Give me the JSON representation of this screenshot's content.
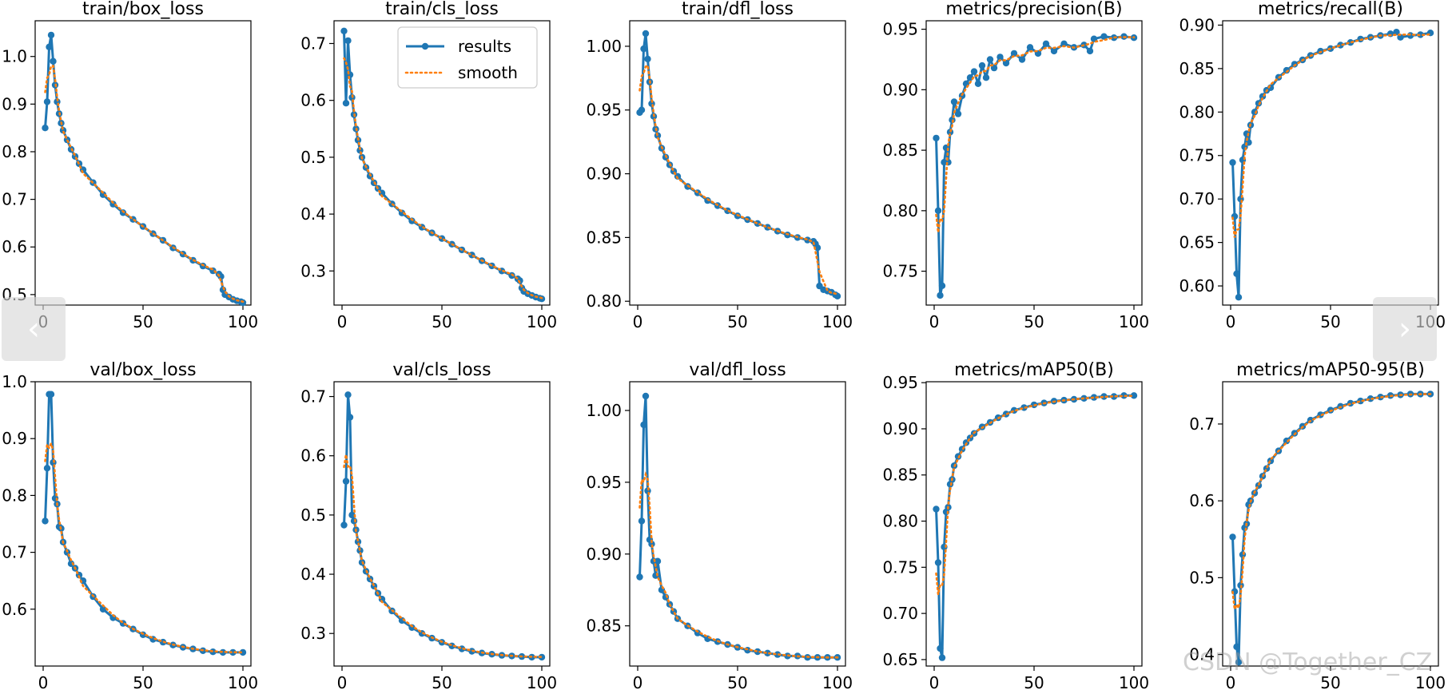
{
  "figure": {
    "legend": {
      "results_label": "results",
      "smooth_label": "smooth",
      "placement": "top-right of panel 2"
    },
    "colors": {
      "results": "#1f77b4",
      "smooth": "#ff7f0e",
      "axes": "#000000"
    }
  },
  "nav": {
    "prev_icon": "chevron-left-icon",
    "next_icon": "chevron-right-icon",
    "prev_glyph": "‹",
    "next_glyph": "›"
  },
  "watermark": {
    "text": "CSDN @Together_CZ"
  },
  "chart_data": [
    {
      "type": "line",
      "title": "train/box_loss",
      "xlim": [
        -4,
        104
      ],
      "ylim": [
        0.478,
        1.075
      ],
      "xticks": [
        0,
        50,
        100
      ],
      "yticks": [
        0.5,
        0.6,
        0.7,
        0.8,
        0.9,
        1.0
      ],
      "yticklabels": [
        "0.5",
        "0.6",
        "0.7",
        "0.8",
        "0.9",
        "1.0"
      ],
      "x": [
        1,
        2,
        3,
        4,
        5,
        6,
        7,
        8,
        9,
        10,
        12,
        14,
        16,
        18,
        20,
        25,
        30,
        35,
        40,
        45,
        50,
        55,
        60,
        65,
        70,
        75,
        80,
        85,
        88,
        89,
        90,
        91,
        93,
        95,
        97,
        99,
        100
      ],
      "values": [
        0.85,
        0.905,
        1.02,
        1.045,
        0.99,
        0.94,
        0.905,
        0.88,
        0.86,
        0.845,
        0.825,
        0.805,
        0.79,
        0.775,
        0.762,
        0.735,
        0.71,
        0.69,
        0.672,
        0.658,
        0.643,
        0.628,
        0.614,
        0.598,
        0.585,
        0.572,
        0.56,
        0.55,
        0.543,
        0.538,
        0.51,
        0.5,
        0.495,
        0.49,
        0.487,
        0.485,
        0.483
      ]
    },
    {
      "type": "line",
      "title": "train/cls_loss",
      "xlim": [
        -4,
        104
      ],
      "ylim": [
        0.24,
        0.74
      ],
      "xticks": [
        0,
        50,
        100
      ],
      "yticks": [
        0.3,
        0.4,
        0.5,
        0.6,
        0.7
      ],
      "yticklabels": [
        "0.3",
        "0.4",
        "0.5",
        "0.6",
        "0.7"
      ],
      "x": [
        1,
        2,
        3,
        4,
        5,
        6,
        7,
        8,
        9,
        10,
        12,
        14,
        16,
        18,
        20,
        25,
        30,
        35,
        40,
        45,
        50,
        55,
        60,
        65,
        70,
        75,
        80,
        85,
        88,
        89,
        90,
        91,
        93,
        95,
        97,
        99,
        100
      ],
      "values": [
        0.722,
        0.595,
        0.705,
        0.645,
        0.605,
        0.575,
        0.55,
        0.53,
        0.512,
        0.5,
        0.482,
        0.467,
        0.455,
        0.445,
        0.437,
        0.418,
        0.402,
        0.388,
        0.377,
        0.367,
        0.357,
        0.347,
        0.337,
        0.328,
        0.318,
        0.309,
        0.3,
        0.292,
        0.286,
        0.283,
        0.27,
        0.264,
        0.26,
        0.257,
        0.254,
        0.252,
        0.251
      ]
    },
    {
      "type": "line",
      "title": "train/dfl_loss",
      "xlim": [
        -4,
        104
      ],
      "ylim": [
        0.797,
        1.02
      ],
      "xticks": [
        0,
        50,
        100
      ],
      "yticks": [
        0.8,
        0.85,
        0.9,
        0.95,
        1.0
      ],
      "yticklabels": [
        "0.80",
        "0.85",
        "0.90",
        "0.95",
        "1.00"
      ],
      "x": [
        1,
        2,
        3,
        4,
        5,
        6,
        7,
        8,
        9,
        10,
        12,
        14,
        16,
        18,
        20,
        25,
        30,
        35,
        40,
        45,
        50,
        55,
        60,
        65,
        70,
        75,
        80,
        85,
        88,
        89,
        90,
        91,
        93,
        95,
        97,
        99,
        100
      ],
      "values": [
        0.948,
        0.95,
        0.998,
        1.01,
        0.99,
        0.972,
        0.955,
        0.945,
        0.935,
        0.93,
        0.92,
        0.913,
        0.907,
        0.902,
        0.898,
        0.89,
        0.885,
        0.879,
        0.875,
        0.871,
        0.867,
        0.864,
        0.861,
        0.858,
        0.855,
        0.852,
        0.85,
        0.848,
        0.847,
        0.845,
        0.842,
        0.812,
        0.809,
        0.808,
        0.807,
        0.805,
        0.804
      ]
    },
    {
      "type": "line",
      "title": "metrics/precision(B)",
      "xlim": [
        -4,
        104
      ],
      "ylim": [
        0.722,
        0.957
      ],
      "xticks": [
        0,
        50,
        100
      ],
      "yticks": [
        0.75,
        0.8,
        0.85,
        0.9,
        0.95
      ],
      "yticklabels": [
        "0.75",
        "0.80",
        "0.85",
        "0.90",
        "0.95"
      ],
      "x": [
        1,
        2,
        3,
        4,
        5,
        6,
        7,
        8,
        9,
        10,
        12,
        14,
        16,
        18,
        20,
        22,
        24,
        26,
        28,
        30,
        33,
        36,
        40,
        44,
        48,
        52,
        56,
        60,
        65,
        70,
        75,
        78,
        80,
        85,
        90,
        95,
        100
      ],
      "values": [
        0.86,
        0.8,
        0.73,
        0.738,
        0.84,
        0.852,
        0.84,
        0.865,
        0.875,
        0.89,
        0.88,
        0.895,
        0.905,
        0.91,
        0.915,
        0.905,
        0.92,
        0.91,
        0.925,
        0.918,
        0.927,
        0.922,
        0.93,
        0.925,
        0.935,
        0.93,
        0.938,
        0.932,
        0.938,
        0.935,
        0.937,
        0.932,
        0.942,
        0.944,
        0.943,
        0.944,
        0.943
      ]
    },
    {
      "type": "line",
      "title": "metrics/recall(B)",
      "xlim": [
        -4,
        104
      ],
      "ylim": [
        0.578,
        0.905
      ],
      "xticks": [
        0,
        50,
        100
      ],
      "yticks": [
        0.6,
        0.65,
        0.7,
        0.75,
        0.8,
        0.85,
        0.9
      ],
      "yticklabels": [
        "0.60",
        "0.65",
        "0.70",
        "0.75",
        "0.80",
        "0.85",
        "0.90"
      ],
      "x": [
        1,
        2,
        3,
        4,
        5,
        6,
        7,
        8,
        9,
        10,
        12,
        14,
        16,
        18,
        20,
        24,
        28,
        32,
        36,
        40,
        45,
        50,
        55,
        60,
        65,
        70,
        75,
        80,
        83,
        85,
        90,
        95,
        100
      ],
      "values": [
        0.742,
        0.68,
        0.614,
        0.587,
        0.7,
        0.745,
        0.76,
        0.775,
        0.765,
        0.785,
        0.8,
        0.81,
        0.818,
        0.825,
        0.828,
        0.84,
        0.848,
        0.855,
        0.86,
        0.865,
        0.87,
        0.873,
        0.877,
        0.88,
        0.884,
        0.886,
        0.888,
        0.89,
        0.892,
        0.886,
        0.888,
        0.889,
        0.891
      ]
    },
    {
      "type": "line",
      "title": "val/box_loss",
      "xlim": [
        -4,
        104
      ],
      "ylim": [
        0.5,
        1.0
      ],
      "xticks": [
        0,
        50,
        100
      ],
      "yticks": [
        0.6,
        0.7,
        0.8,
        0.9,
        1.0
      ],
      "yticklabels": [
        "0.6",
        "0.7",
        "0.8",
        "0.9",
        "1.0"
      ],
      "x": [
        1,
        2,
        3,
        4,
        5,
        6,
        7,
        8,
        9,
        10,
        12,
        14,
        16,
        18,
        20,
        25,
        30,
        35,
        40,
        45,
        50,
        55,
        60,
        65,
        70,
        75,
        80,
        85,
        90,
        95,
        100
      ],
      "values": [
        0.755,
        0.848,
        0.978,
        0.978,
        0.858,
        0.795,
        0.785,
        0.745,
        0.742,
        0.718,
        0.7,
        0.68,
        0.672,
        0.66,
        0.65,
        0.622,
        0.6,
        0.585,
        0.575,
        0.565,
        0.555,
        0.547,
        0.542,
        0.537,
        0.533,
        0.53,
        0.527,
        0.525,
        0.524,
        0.524,
        0.524
      ]
    },
    {
      "type": "line",
      "title": "val/cls_loss",
      "xlim": [
        -4,
        104
      ],
      "ylim": [
        0.245,
        0.725
      ],
      "xticks": [
        0,
        50,
        100
      ],
      "yticks": [
        0.3,
        0.4,
        0.5,
        0.6,
        0.7
      ],
      "yticklabels": [
        "0.3",
        "0.4",
        "0.5",
        "0.6",
        "0.7"
      ],
      "x": [
        1,
        2,
        3,
        4,
        5,
        6,
        7,
        8,
        9,
        10,
        12,
        14,
        16,
        18,
        20,
        25,
        30,
        35,
        40,
        45,
        50,
        55,
        60,
        65,
        70,
        75,
        80,
        85,
        90,
        95,
        100
      ],
      "values": [
        0.483,
        0.557,
        0.703,
        0.665,
        0.5,
        0.49,
        0.475,
        0.455,
        0.44,
        0.42,
        0.405,
        0.392,
        0.38,
        0.368,
        0.358,
        0.338,
        0.322,
        0.31,
        0.3,
        0.292,
        0.285,
        0.279,
        0.274,
        0.27,
        0.267,
        0.265,
        0.263,
        0.262,
        0.261,
        0.26,
        0.26
      ]
    },
    {
      "type": "line",
      "title": "val/dfl_loss",
      "xlim": [
        -4,
        104
      ],
      "ylim": [
        0.822,
        1.02
      ],
      "xticks": [
        0,
        50,
        100
      ],
      "yticks": [
        0.85,
        0.9,
        0.95,
        1.0
      ],
      "yticklabels": [
        "0.85",
        "0.90",
        "0.95",
        "1.00"
      ],
      "x": [
        1,
        2,
        3,
        4,
        5,
        6,
        7,
        8,
        9,
        10,
        12,
        14,
        16,
        18,
        20,
        25,
        30,
        35,
        40,
        45,
        50,
        55,
        60,
        65,
        70,
        75,
        80,
        85,
        90,
        95,
        100
      ],
      "values": [
        0.884,
        0.923,
        0.99,
        1.01,
        0.944,
        0.91,
        0.907,
        0.895,
        0.885,
        0.895,
        0.875,
        0.87,
        0.865,
        0.86,
        0.855,
        0.85,
        0.845,
        0.841,
        0.839,
        0.837,
        0.835,
        0.833,
        0.832,
        0.831,
        0.83,
        0.829,
        0.829,
        0.828,
        0.828,
        0.828,
        0.828
      ]
    },
    {
      "type": "line",
      "title": "metrics/mAP50(B)",
      "xlim": [
        -4,
        104
      ],
      "ylim": [
        0.643,
        0.951
      ],
      "xticks": [
        0,
        50,
        100
      ],
      "yticks": [
        0.65,
        0.7,
        0.75,
        0.8,
        0.85,
        0.9,
        0.95
      ],
      "yticklabels": [
        "0.65",
        "0.70",
        "0.75",
        "0.80",
        "0.85",
        "0.90",
        "0.95"
      ],
      "x": [
        1,
        2,
        3,
        4,
        5,
        6,
        7,
        8,
        9,
        10,
        12,
        14,
        16,
        18,
        20,
        24,
        28,
        32,
        36,
        40,
        45,
        50,
        55,
        60,
        65,
        70,
        75,
        80,
        85,
        90,
        95,
        100
      ],
      "values": [
        0.813,
        0.755,
        0.662,
        0.652,
        0.772,
        0.81,
        0.815,
        0.84,
        0.845,
        0.86,
        0.87,
        0.878,
        0.885,
        0.89,
        0.895,
        0.902,
        0.907,
        0.912,
        0.916,
        0.92,
        0.923,
        0.926,
        0.928,
        0.93,
        0.931,
        0.932,
        0.933,
        0.934,
        0.935,
        0.935,
        0.936,
        0.936
      ]
    },
    {
      "type": "line",
      "title": "metrics/mAP50-95(B)",
      "xlim": [
        -4,
        104
      ],
      "ylim": [
        0.385,
        0.755
      ],
      "xticks": [
        0,
        50,
        100
      ],
      "yticks": [
        0.4,
        0.5,
        0.6,
        0.7
      ],
      "yticklabels": [
        "0.4",
        "0.5",
        "0.6",
        "0.7"
      ],
      "x": [
        1,
        2,
        3,
        4,
        5,
        6,
        7,
        8,
        9,
        10,
        12,
        14,
        16,
        18,
        20,
        24,
        28,
        32,
        36,
        40,
        45,
        50,
        55,
        60,
        65,
        70,
        75,
        80,
        85,
        90,
        95,
        100
      ],
      "values": [
        0.553,
        0.482,
        0.41,
        0.39,
        0.49,
        0.53,
        0.565,
        0.57,
        0.595,
        0.6,
        0.61,
        0.62,
        0.632,
        0.642,
        0.652,
        0.665,
        0.678,
        0.688,
        0.697,
        0.705,
        0.712,
        0.718,
        0.723,
        0.727,
        0.73,
        0.733,
        0.735,
        0.737,
        0.738,
        0.739,
        0.739,
        0.739
      ]
    }
  ]
}
